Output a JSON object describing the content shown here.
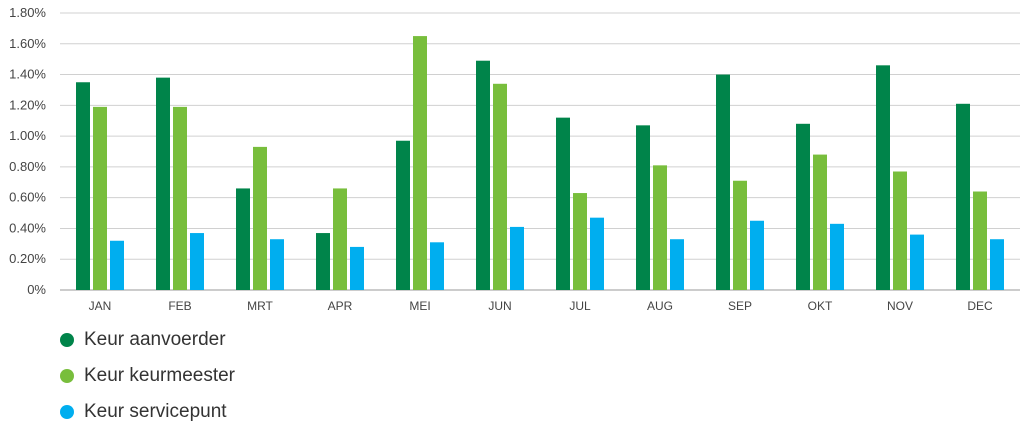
{
  "chart_data": {
    "type": "bar",
    "categories": [
      "JAN",
      "FEB",
      "MRT",
      "APR",
      "MEI",
      "JUN",
      "JUL",
      "AUG",
      "SEP",
      "OKT",
      "NOV",
      "DEC"
    ],
    "series": [
      {
        "name": "Keur aanvoerder",
        "color": "#00844a",
        "values": [
          1.35,
          1.38,
          0.66,
          0.37,
          0.97,
          1.49,
          1.12,
          1.07,
          1.4,
          1.08,
          1.46,
          1.21
        ]
      },
      {
        "name": "Keur keurmeester",
        "color": "#78be3c",
        "values": [
          1.19,
          1.19,
          0.93,
          0.66,
          1.65,
          1.34,
          0.63,
          0.81,
          0.71,
          0.88,
          0.77,
          0.64
        ]
      },
      {
        "name": "Keur servicepunt",
        "color": "#00aeef",
        "values": [
          0.32,
          0.37,
          0.33,
          0.28,
          0.31,
          0.41,
          0.47,
          0.33,
          0.45,
          0.43,
          0.36,
          0.33
        ]
      }
    ],
    "yticks": [
      "0%",
      "0.20%",
      "0.40%",
      "0.60%",
      "0.80%",
      "1.00%",
      "1.20%",
      "1.40%",
      "1.60%",
      "1.80%"
    ],
    "ylim": [
      0,
      1.8
    ],
    "grid": true,
    "legend_position": "bottom-left"
  }
}
